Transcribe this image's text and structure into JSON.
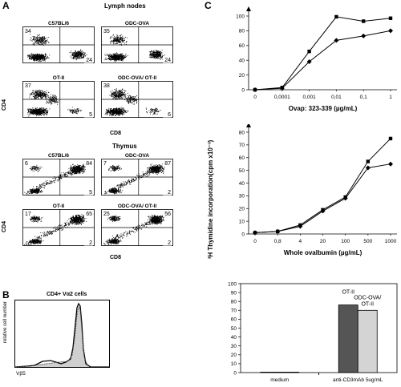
{
  "panel_labels": {
    "a": "A",
    "b": "B",
    "c": "C"
  },
  "panel_a": {
    "lymph_title": "Lymph nodes",
    "thymus_title": "Thymus",
    "y_label": "CD4",
    "x_label": "CD8",
    "lymph_plots": [
      {
        "name": "C57BL/6",
        "tl": "34",
        "br": "24",
        "tr": "",
        "bl": ""
      },
      {
        "name": "ODC-OVA",
        "tl": "35",
        "br": "24",
        "tr": "",
        "bl": ""
      },
      {
        "name": "OT-II",
        "tl": "37",
        "br": "5",
        "tr": "",
        "bl": ""
      },
      {
        "name": "ODC-OVA/ OT-II",
        "tl": "38",
        "br": "6",
        "tr": "",
        "bl": ""
      }
    ],
    "thymus_plots": [
      {
        "name": "C57BL/6",
        "tl": "6",
        "tr": "84",
        "br": "5",
        "bl": ""
      },
      {
        "name": "ODC-OVA",
        "tl": "7",
        "tr": "87",
        "br": "2",
        "bl": ""
      },
      {
        "name": "OT-II",
        "tl": "17",
        "tr": "65",
        "br": "2",
        "bl": ""
      },
      {
        "name": "ODC-OVA/ OT-II",
        "tl": "25",
        "tr": "56",
        "br": "2",
        "bl": ""
      }
    ]
  },
  "panel_b": {
    "title": "CD4+ Vα2 cells",
    "y_label": "relative cell number",
    "x_label": "Vβ5"
  },
  "panel_c": {
    "y_label": "³H Thymidine incorporation(cpm x10⁻³)"
  },
  "chart_data": [
    {
      "type": "line",
      "xlabel": "Ovap: 323-339 (µg/mL)",
      "categories": [
        "0",
        "0,0001",
        "0,001",
        "0,01",
        "0,1",
        "1"
      ],
      "y_ticks": [
        "0",
        "20",
        "40",
        "60",
        "80",
        "100"
      ],
      "ylim": [
        0,
        100
      ],
      "series": [
        {
          "marker": "square",
          "values": [
            0,
            3,
            52,
            99,
            93,
            97
          ]
        },
        {
          "marker": "diamond",
          "values": [
            0,
            2,
            38,
            67,
            73,
            80
          ]
        }
      ]
    },
    {
      "type": "line",
      "xlabel": "Whole ovalbumin (µg/mL)",
      "categories": [
        "0",
        "0,8",
        "4",
        "20",
        "100",
        "500",
        "1000"
      ],
      "y_ticks": [
        "0",
        "10",
        "20",
        "30",
        "40",
        "50",
        "60",
        "70",
        "80"
      ],
      "ylim": [
        0,
        80
      ],
      "series": [
        {
          "marker": "square",
          "values": [
            1,
            2,
            7,
            19,
            29,
            57,
            75
          ]
        },
        {
          "marker": "diamond",
          "values": [
            1,
            2,
            6,
            18,
            28,
            52,
            55
          ]
        }
      ]
    },
    {
      "type": "bar",
      "categories": [
        "medium",
        "anti-CD3mAb 5ug/mL"
      ],
      "y_ticks": [
        "0",
        "10",
        "20",
        "30",
        "40",
        "50",
        "60",
        "70",
        "80",
        "90",
        "100"
      ],
      "ylim": [
        0,
        100
      ],
      "series": [
        {
          "name": "OT-II",
          "color": "#555555",
          "values": [
            0.5,
            76
          ]
        },
        {
          "name": "ODC-OVA/ OT-II",
          "color": "#d4d4d4",
          "values": [
            0.5,
            70
          ]
        }
      ]
    }
  ]
}
